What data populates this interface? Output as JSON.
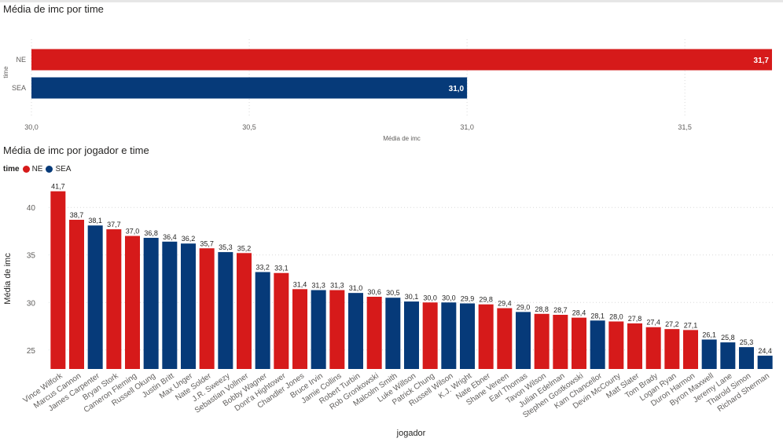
{
  "colors": {
    "NE": "#d61a1a",
    "SEA": "#063a79"
  },
  "chart_data": [
    {
      "type": "bar",
      "orientation": "horizontal",
      "title": "Média de imc por time",
      "xlabel": "Média de imc",
      "ylabel": "time",
      "categories": [
        "NE",
        "SEA"
      ],
      "values": [
        31.7,
        31.0
      ],
      "value_labels": [
        "31,7",
        "31,0"
      ],
      "xlim": [
        30.0,
        31.7
      ],
      "x_ticks": [
        30.0,
        30.5,
        31.0,
        31.5
      ],
      "x_tick_labels": [
        "30,0",
        "30,5",
        "31,0",
        "31,5"
      ],
      "grid": true
    },
    {
      "type": "bar",
      "title": "Média de imc por jogador e time",
      "xlabel": "jogador",
      "ylabel": "Média de imc",
      "legend_title": "time",
      "legend": [
        "NE",
        "SEA"
      ],
      "legend_position": "top-left",
      "ylim": [
        23,
        42
      ],
      "y_ticks": [
        25,
        30,
        35,
        40
      ],
      "grid": true,
      "categories": [
        "Vince Wilfork",
        "Marcus Cannon",
        "James Carpenter",
        "Bryan Stork",
        "Cameron Fleming",
        "Russell Okung",
        "Justin Britt",
        "Max Unger",
        "Nate Solder",
        "J.R. Sweezy",
        "Sebastian Vollmer",
        "Bobby Wagner",
        "Dont'a Hightower",
        "Chandler Jones",
        "Bruce Irvin",
        "Jamie Collins",
        "Robert Turbin",
        "Rob Gronkowski",
        "Malcolm Smith",
        "Luke Willson",
        "Patrick Chung",
        "Russell Wilson",
        "K.J. Wright",
        "Nate Ebner",
        "Shane Vereen",
        "Earl Thomas",
        "Tavon Wilson",
        "Julian Edelman",
        "Stephen Gostkowski",
        "Kam Chancellor",
        "Devin McCourty",
        "Matt Slater",
        "Tom Brady",
        "Logan Ryan",
        "Duron Harmon",
        "Byron Maxwell",
        "Jeremy Lane",
        "Tharold Simon",
        "Richard Sherman"
      ],
      "values": [
        41.7,
        38.7,
        38.1,
        37.7,
        37.0,
        36.8,
        36.4,
        36.2,
        35.7,
        35.3,
        35.2,
        33.2,
        33.1,
        31.4,
        31.3,
        31.3,
        31.0,
        30.6,
        30.5,
        30.1,
        30.0,
        30.0,
        29.9,
        29.8,
        29.4,
        29.0,
        28.8,
        28.7,
        28.4,
        28.1,
        28.0,
        27.8,
        27.4,
        27.2,
        27.1,
        26.1,
        25.8,
        25.3,
        24.4
      ],
      "value_labels": [
        "41,7",
        "38,7",
        "38,1",
        "37,7",
        "37,0",
        "36,8",
        "36,4",
        "36,2",
        "35,7",
        "35,3",
        "35,2",
        "33,2",
        "33,1",
        "31,4",
        "31,3",
        "31,3",
        "31,0",
        "30,6",
        "30,5",
        "30,1",
        "30,0",
        "30,0",
        "29,9",
        "29,8",
        "29,4",
        "29,0",
        "28,8",
        "28,7",
        "28,4",
        "28,1",
        "28,0",
        "27,8",
        "27,4",
        "27,2",
        "27,1",
        "26,1",
        "25,8",
        "25,3",
        "24,4"
      ],
      "teams": [
        "NE",
        "NE",
        "SEA",
        "NE",
        "NE",
        "SEA",
        "SEA",
        "SEA",
        "NE",
        "SEA",
        "NE",
        "SEA",
        "NE",
        "NE",
        "SEA",
        "NE",
        "SEA",
        "NE",
        "SEA",
        "SEA",
        "NE",
        "SEA",
        "SEA",
        "NE",
        "NE",
        "SEA",
        "NE",
        "NE",
        "NE",
        "SEA",
        "NE",
        "NE",
        "NE",
        "NE",
        "NE",
        "SEA",
        "SEA",
        "SEA",
        "SEA"
      ]
    }
  ]
}
